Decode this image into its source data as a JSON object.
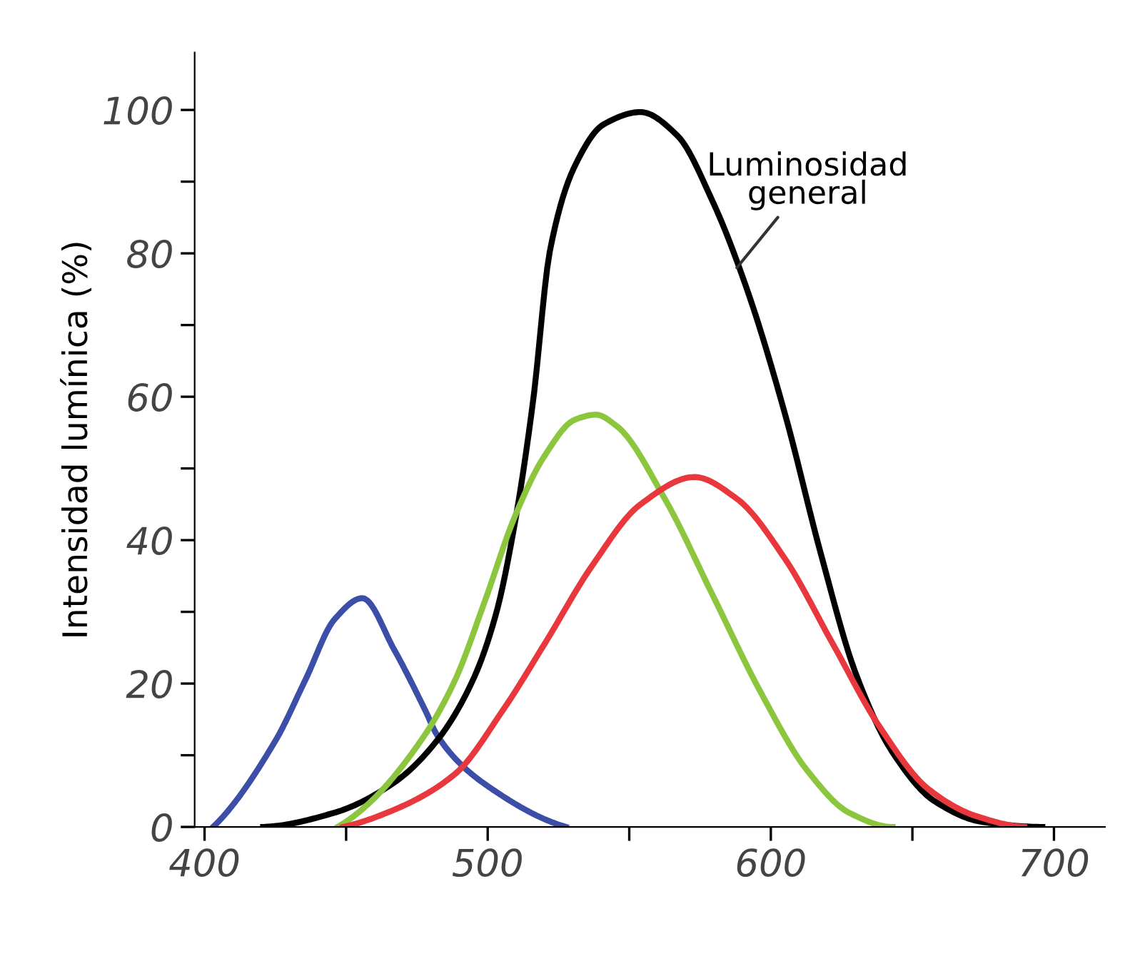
{
  "chart_data": {
    "type": "line",
    "ylabel": "Intensidad lumínica (%)",
    "xlim": [
      396.5,
      718
    ],
    "ylim": [
      0,
      108
    ],
    "xticks": [
      400,
      {
        "value": 450,
        "label": null
      },
      500,
      {
        "value": 550,
        "label": null
      },
      600,
      {
        "value": 650,
        "label": null
      },
      700
    ],
    "yticks": [
      0,
      {
        "value": 10,
        "label": null
      },
      20,
      {
        "value": 30,
        "label": null
      },
      40,
      {
        "value": 50,
        "label": null
      },
      60,
      {
        "value": 70,
        "label": null
      },
      80,
      {
        "value": 90,
        "label": null
      },
      100
    ],
    "grid": false,
    "legend": false,
    "marker": "none",
    "line_style": "solid",
    "annotations": [
      {
        "text": "Luminosidad\ngeneral",
        "x": 588,
        "y": 78
      }
    ],
    "series": [
      {
        "color": "#3c4fa8",
        "x": [
          403,
          425,
          435.6,
          446,
          455.7,
          467,
          477.9,
          482,
          490.6,
          500,
          520,
          527.6
        ],
        "values": [
          0,
          12,
          20.5,
          29,
          31.9,
          24.7,
          16.3,
          12.9,
          8.7,
          5.7,
          1.1,
          0
        ]
      },
      {
        "color": "#000000",
        "x": [
          420.7,
          446,
          467,
          482,
          494.8,
          503,
          509.6,
          516,
          522,
          530.8,
          541,
          554,
          566.8,
          579.5,
          592,
          605,
          617.6,
          630,
          643,
          657.8,
          674.7,
          695.9
        ],
        "values": [
          0,
          2,
          6.2,
          12,
          20.5,
          29.8,
          42.4,
          59.3,
          80.4,
          92.2,
          98,
          99.7,
          96.5,
          87.2,
          74.5,
          57.6,
          38.2,
          21.4,
          10.4,
          3.6,
          0.7,
          0
        ]
      },
      {
        "color": "#8cc63f",
        "x": [
          447,
          456.7,
          477.9,
          488.5,
          499,
          509.6,
          520,
          530.8,
          538.2,
          545.6,
          562.5,
          579.5,
          596.4,
          613,
          628,
          643
        ],
        "values": [
          0,
          2.8,
          12.9,
          20.5,
          31.5,
          43.3,
          51.7,
          56.8,
          57.5,
          55.9,
          45.8,
          32.3,
          18.8,
          7.8,
          1.9,
          0
        ]
      },
      {
        "color": "#e8383d",
        "x": [
          449,
          467,
          488.5,
          505.4,
          520.2,
          537,
          554,
          573,
          587.9,
          605,
          621.8,
          638.7,
          655.6,
          672.6,
          689.5
        ],
        "values": [
          0,
          2.4,
          7.4,
          16.3,
          25.6,
          36.5,
          45,
          48.8,
          45.8,
          37.4,
          25.6,
          13.8,
          5.3,
          1.5,
          0
        ]
      }
    ]
  }
}
